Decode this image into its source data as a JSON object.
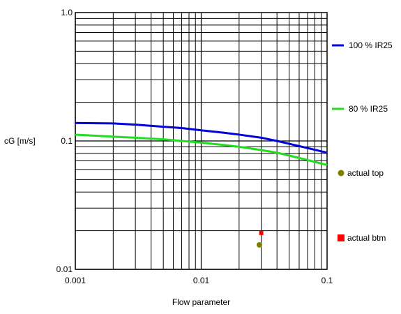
{
  "chart_data": {
    "type": "line",
    "title": "",
    "xlabel": "Flow parameter",
    "ylabel": "cG [m/s]",
    "x_scale": "log",
    "y_scale": "log",
    "xlim": [
      0.001,
      0.1
    ],
    "ylim": [
      0.01,
      1.0
    ],
    "x_ticks": [
      {
        "value": 0.001,
        "label": "0.001"
      },
      {
        "value": 0.01,
        "label": "0.01"
      },
      {
        "value": 0.1,
        "label": "0.1"
      }
    ],
    "y_ticks": [
      {
        "value": 0.01,
        "label": "0.01"
      },
      {
        "value": 0.1,
        "label": "0.1"
      },
      {
        "value": 1.0,
        "label": "1.0"
      }
    ],
    "grid": true,
    "legend_position": "right",
    "series": [
      {
        "name": "100 % IR25",
        "color": "#0000dd",
        "marker": "line",
        "x": [
          0.001,
          0.002,
          0.003,
          0.005,
          0.007,
          0.01,
          0.015,
          0.02,
          0.03,
          0.04,
          0.05,
          0.07,
          0.1
        ],
        "y": [
          0.138,
          0.137,
          0.134,
          0.129,
          0.126,
          0.121,
          0.116,
          0.112,
          0.106,
          0.1,
          0.095,
          0.088,
          0.081
        ]
      },
      {
        "name": "80 % IR25",
        "color": "#22dd22",
        "marker": "line",
        "x": [
          0.001,
          0.002,
          0.003,
          0.005,
          0.007,
          0.01,
          0.015,
          0.02,
          0.03,
          0.04,
          0.05,
          0.07,
          0.1
        ],
        "y": [
          0.112,
          0.108,
          0.106,
          0.103,
          0.1,
          0.097,
          0.093,
          0.09,
          0.085,
          0.081,
          0.077,
          0.071,
          0.065
        ]
      },
      {
        "name": "actual top",
        "color": "#808000",
        "marker": "circle",
        "x": [
          0.029
        ],
        "y": [
          0.0155
        ]
      },
      {
        "name": "actual btm",
        "color": "#ff0000",
        "marker": "square",
        "x": [
          0.03
        ],
        "y": [
          0.0192
        ]
      }
    ]
  }
}
